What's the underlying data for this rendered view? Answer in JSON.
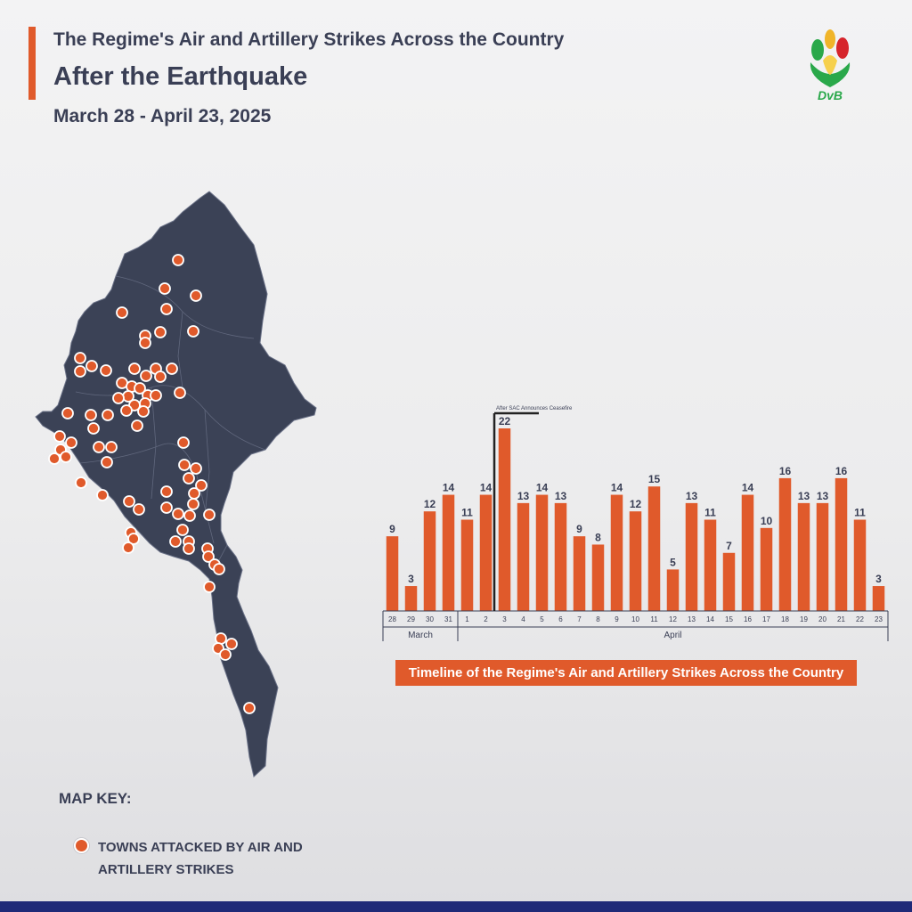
{
  "header": {
    "title_line1": "The Regime's Air and Artillery Strikes Across the Country",
    "title_line2": "After the Earthquake",
    "date_range": "March 28 - April 23, 2025"
  },
  "logo": {
    "text": "DvB",
    "icon": "dvb-logo-icon"
  },
  "map": {
    "fill_color": "#3b4256",
    "border_color": "#6a7187",
    "marker_color": "#e05a2b",
    "marker_icon": "strike-marker-icon"
  },
  "legend": {
    "title": "MAP KEY:",
    "item_label": "TOWNS ATTACKED BY AIR AND ARTILLERY STRIKES"
  },
  "chart_caption": "Timeline of the Regime's Air and Artillery Strikes Across the Country",
  "chart_data": {
    "type": "bar",
    "categories": [
      "28",
      "29",
      "30",
      "31",
      "1",
      "2",
      "3",
      "4",
      "5",
      "6",
      "7",
      "8",
      "9",
      "10",
      "11",
      "12",
      "13",
      "14",
      "15",
      "16",
      "17",
      "18",
      "19",
      "20",
      "21",
      "22",
      "23"
    ],
    "values": [
      9,
      3,
      12,
      14,
      11,
      14,
      22,
      13,
      14,
      13,
      9,
      8,
      14,
      12,
      15,
      5,
      13,
      11,
      7,
      14,
      10,
      16,
      13,
      13,
      16,
      11,
      3
    ],
    "months": [
      {
        "label": "March",
        "start": 0,
        "end": 3
      },
      {
        "label": "April",
        "start": 4,
        "end": 26
      }
    ],
    "annotation": {
      "text": "After SAC Announces Ceasefire",
      "index": 6
    },
    "bar_color": "#e05a2b",
    "ylim": [
      0,
      22
    ]
  }
}
